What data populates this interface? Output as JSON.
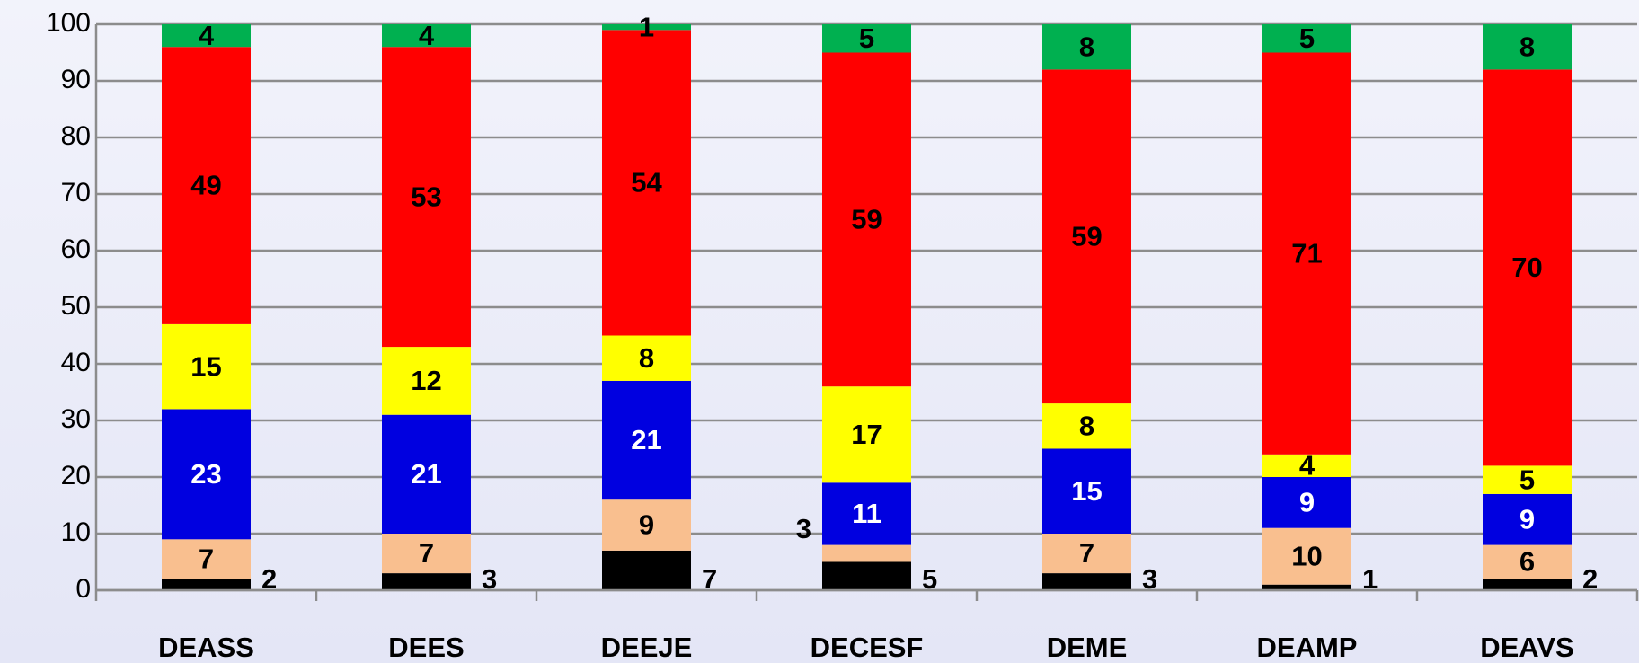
{
  "chart_data": {
    "type": "stacked_bar",
    "categories": [
      "DEASS",
      "DEES",
      "DEEJE",
      "DECESF",
      "DEME",
      "DEAMP",
      "DEAVS"
    ],
    "series": [
      {
        "color": "#000000",
        "values": [
          2,
          3,
          7,
          5,
          3,
          1,
          2
        ]
      },
      {
        "color": "#f9bf8f",
        "values": [
          7,
          7,
          9,
          3,
          7,
          10,
          6
        ]
      },
      {
        "color": "#0000e0",
        "values": [
          23,
          21,
          21,
          11,
          15,
          9,
          9
        ]
      },
      {
        "color": "#ffff00",
        "values": [
          15,
          12,
          8,
          17,
          8,
          4,
          5
        ]
      },
      {
        "color": "#ff0000",
        "values": [
          49,
          53,
          54,
          59,
          59,
          71,
          70
        ]
      },
      {
        "color": "#00b050",
        "values": [
          4,
          4,
          1,
          5,
          8,
          5,
          8
        ]
      }
    ],
    "ylim": [
      0,
      100
    ],
    "yticks": [
      0,
      10,
      20,
      30,
      40,
      50,
      60,
      70,
      80,
      90,
      100
    ],
    "grid": true
  }
}
